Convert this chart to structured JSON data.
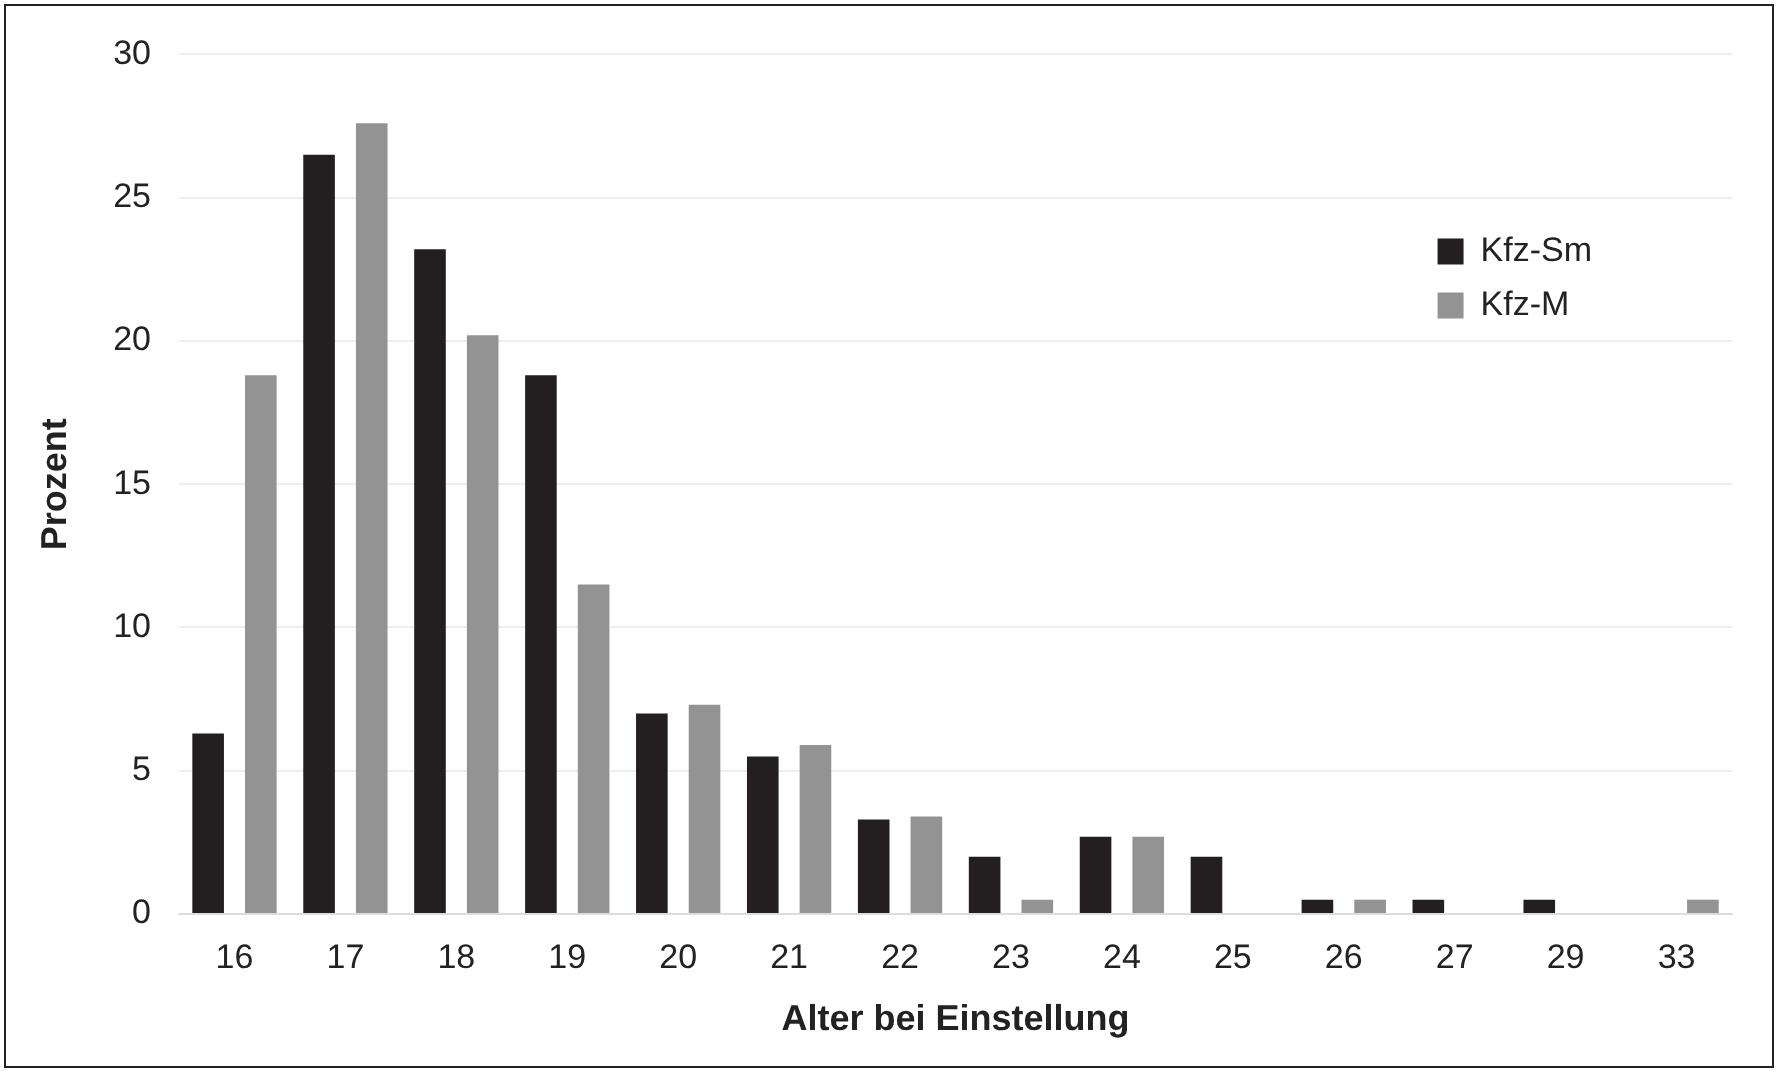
{
  "chart_data": {
    "type": "bar",
    "xlabel": "Alter bei Einstellung",
    "ylabel": "Prozent",
    "categories": [
      "16",
      "17",
      "18",
      "19",
      "20",
      "21",
      "22",
      "23",
      "24",
      "25",
      "26",
      "27",
      "29",
      "33"
    ],
    "series": [
      {
        "name": "Kfz-Sm",
        "color": "#231f20",
        "values": [
          6.3,
          26.5,
          23.2,
          18.8,
          7.0,
          5.5,
          3.3,
          2.0,
          2.7,
          2.0,
          0.5,
          0.5,
          0.5,
          0
        ]
      },
      {
        "name": "Kfz-M",
        "color": "#939393",
        "values": [
          18.8,
          27.6,
          20.2,
          11.5,
          7.3,
          5.9,
          3.4,
          0.5,
          2.7,
          0,
          0.5,
          0,
          0,
          0.5
        ]
      }
    ],
    "ylim": [
      0,
      30
    ],
    "yticks": [
      0,
      5,
      10,
      15,
      20,
      25,
      30
    ],
    "grid": "y",
    "legend": "top right"
  }
}
